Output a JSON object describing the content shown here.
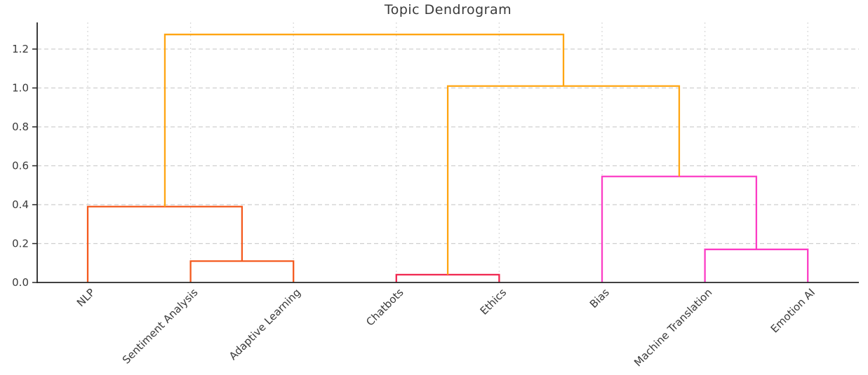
{
  "chart_data": {
    "type": "dendrogram",
    "title": "Topic Dendrogram",
    "leaves": [
      "NLP",
      "Sentiment Analysis",
      "Adaptive Learning",
      "Chatbots",
      "Ethics",
      "Bias",
      "Machine Translation",
      "Emotion AI"
    ],
    "yticks": [
      "0.0",
      "0.2",
      "0.4",
      "0.6",
      "0.8",
      "1.0",
      "1.2"
    ],
    "ylim": [
      0,
      1.34
    ],
    "merges": [
      {
        "id": "M0",
        "left": "L3",
        "right": "L4",
        "height": 0.04,
        "color_key": "crimson"
      },
      {
        "id": "M1",
        "left": "L1",
        "right": "L2",
        "height": 0.11,
        "color_key": "orange_red"
      },
      {
        "id": "M2",
        "left": "L6",
        "right": "L7",
        "height": 0.17,
        "color_key": "magenta"
      },
      {
        "id": "M3",
        "left": "L0",
        "right": "M1",
        "height": 0.39,
        "color_key": "orange_red"
      },
      {
        "id": "M4",
        "left": "L5",
        "right": "M2",
        "height": 0.545,
        "color_key": "magenta"
      },
      {
        "id": "M5",
        "left": "M0",
        "right": "M4",
        "height": 1.01,
        "color_key": "amber"
      },
      {
        "id": "M6",
        "left": "M3",
        "right": "M5",
        "height": 1.275,
        "color_key": "amber"
      }
    ],
    "colors": {
      "amber": "#FFA512",
      "orange_red": "#F4591D",
      "crimson": "#F0264F",
      "magenta": "#FC3DC5"
    },
    "grid": {
      "horizontal": "dashed",
      "vertical": "dotted"
    },
    "grid_color_h": "#cfcfcf",
    "grid_color_v": "#dadada",
    "axis_color": "#262626",
    "text_color": "#3a3a3a",
    "legend": "none"
  }
}
